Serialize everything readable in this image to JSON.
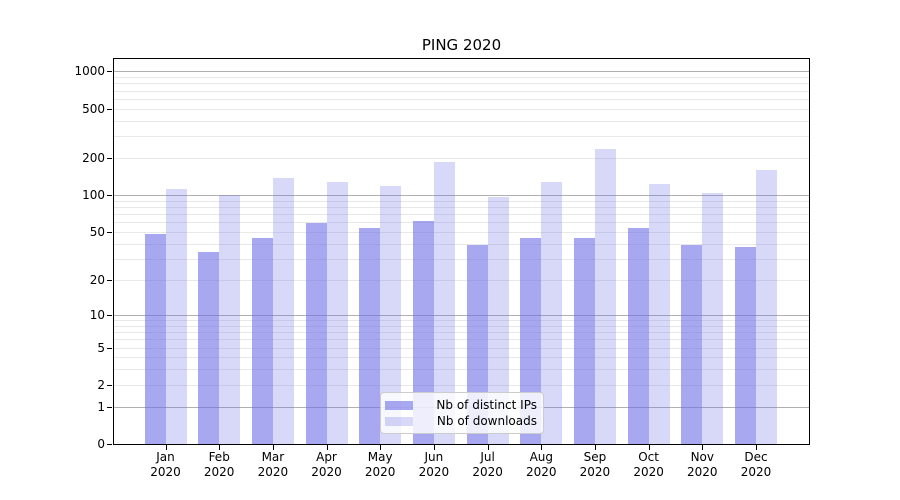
{
  "chart_data": {
    "type": "bar",
    "title": "PING 2020",
    "categories": [
      "Jan",
      "Feb",
      "Mar",
      "Apr",
      "May",
      "Jun",
      "Jul",
      "Aug",
      "Sep",
      "Oct",
      "Nov",
      "Dec"
    ],
    "category_year": "2020",
    "series": [
      {
        "name": "Nb of distinct IPs",
        "color": "#a8a8f0",
        "color_rgba": "rgba(110,110,230,0.60)",
        "values": [
          48,
          34,
          45,
          59,
          54,
          61,
          39,
          45,
          45,
          54,
          39,
          38
        ]
      },
      {
        "name": "Nb of downloads",
        "color": "#d8d8f8",
        "color_rgba": "rgba(110,110,230,0.27)",
        "values": [
          113,
          100,
          138,
          128,
          118,
          186,
          97,
          128,
          238,
          124,
          104,
          161
        ]
      }
    ],
    "yscale": "symlog",
    "y_ticks": [
      0,
      1,
      2,
      5,
      10,
      20,
      50,
      100,
      200,
      500,
      1000
    ],
    "ylim": [
      0,
      1280
    ],
    "grid": true,
    "legend_position": "lower center",
    "colors": {
      "major_grid": "#b0b0b0",
      "minor_grid": "#e8e8e8",
      "axis": "#000000",
      "text": "#000000",
      "background": "#ffffff",
      "legend_border": "#cccccc"
    }
  }
}
